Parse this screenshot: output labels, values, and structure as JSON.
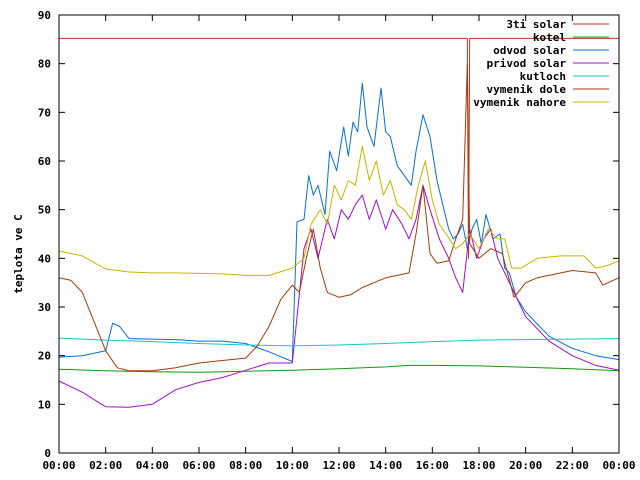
{
  "chart_data": {
    "type": "line",
    "title": "",
    "xlabel": "",
    "ylabel": "teplota ve C",
    "xlim": [
      0,
      24
    ],
    "ylim": [
      0,
      90
    ],
    "x_ticks": [
      0,
      2,
      4,
      6,
      8,
      10,
      12,
      14,
      16,
      18,
      20,
      22,
      24
    ],
    "x_tick_labels": [
      "00:00",
      "02:00",
      "04:00",
      "06:00",
      "08:00",
      "10:00",
      "12:00",
      "14:00",
      "16:00",
      "18:00",
      "20:00",
      "22:00",
      "00:00"
    ],
    "y_ticks": [
      0,
      10,
      20,
      30,
      40,
      50,
      60,
      70,
      80,
      90
    ],
    "grid": false,
    "legend_position": "top-right",
    "series": [
      {
        "name": "3ti solar",
        "color": "#c8321e",
        "points": [
          [
            0,
            85.2
          ],
          [
            17.45,
            85.2
          ],
          [
            17.5,
            85.2
          ],
          [
            17.55,
            40
          ],
          [
            17.6,
            85.2
          ],
          [
            24,
            85.2
          ]
        ]
      },
      {
        "name": "kotel",
        "color": "#119911",
        "points": [
          [
            0,
            17.2
          ],
          [
            2,
            16.9
          ],
          [
            4,
            16.7
          ],
          [
            6,
            16.6
          ],
          [
            8,
            16.8
          ],
          [
            10,
            17.0
          ],
          [
            12,
            17.3
          ],
          [
            14,
            17.7
          ],
          [
            15,
            18.0
          ],
          [
            16,
            18.0
          ],
          [
            18,
            17.9
          ],
          [
            20,
            17.6
          ],
          [
            22,
            17.3
          ],
          [
            24,
            16.9
          ]
        ]
      },
      {
        "name": "odvod solar",
        "color": "#0a6ed0",
        "points": [
          [
            0,
            19.7
          ],
          [
            1,
            20.0
          ],
          [
            2,
            21.0
          ],
          [
            2.3,
            26.7
          ],
          [
            2.6,
            26.0
          ],
          [
            3,
            23.5
          ],
          [
            4,
            23.4
          ],
          [
            5,
            23.3
          ],
          [
            6,
            23.0
          ],
          [
            7,
            23.0
          ],
          [
            8,
            22.5
          ],
          [
            9,
            20.8
          ],
          [
            10,
            18.8
          ],
          [
            10.2,
            47.5
          ],
          [
            10.5,
            48.0
          ],
          [
            10.7,
            57.0
          ],
          [
            10.9,
            53.0
          ],
          [
            11.1,
            55.0
          ],
          [
            11.4,
            49.0
          ],
          [
            11.6,
            62.0
          ],
          [
            11.9,
            58.0
          ],
          [
            12.2,
            67.0
          ],
          [
            12.4,
            61.0
          ],
          [
            12.6,
            68.0
          ],
          [
            12.8,
            66.0
          ],
          [
            13.0,
            76.0
          ],
          [
            13.2,
            67.0
          ],
          [
            13.5,
            63.0
          ],
          [
            13.8,
            75.0
          ],
          [
            14.0,
            66.0
          ],
          [
            14.2,
            65.0
          ],
          [
            14.5,
            59.0
          ],
          [
            14.8,
            57.0
          ],
          [
            15.1,
            55.0
          ],
          [
            15.3,
            62.0
          ],
          [
            15.6,
            69.5
          ],
          [
            15.9,
            65.0
          ],
          [
            16.2,
            56.0
          ],
          [
            16.5,
            50.0
          ],
          [
            16.7,
            46.0
          ],
          [
            16.9,
            44.0
          ],
          [
            17.1,
            45.0
          ],
          [
            17.3,
            47.0
          ],
          [
            17.5,
            42.0
          ],
          [
            17.7,
            46.0
          ],
          [
            17.9,
            48.0
          ],
          [
            18.1,
            43.0
          ],
          [
            18.3,
            49.0
          ],
          [
            18.6,
            44.0
          ],
          [
            18.9,
            45.0
          ],
          [
            19.1,
            38.0
          ],
          [
            19.3,
            37.0
          ],
          [
            19.6,
            32.0
          ],
          [
            20.0,
            29.0
          ],
          [
            21.0,
            24.0
          ],
          [
            22.0,
            21.5
          ],
          [
            23.0,
            20.0
          ],
          [
            24,
            19.2
          ]
        ]
      },
      {
        "name": "privod solar",
        "color": "#a010c8",
        "points": [
          [
            0,
            14.8
          ],
          [
            1,
            12.5
          ],
          [
            2,
            9.5
          ],
          [
            3,
            9.4
          ],
          [
            4,
            10.0
          ],
          [
            5,
            13.0
          ],
          [
            6,
            14.5
          ],
          [
            7,
            15.5
          ],
          [
            8,
            17.0
          ],
          [
            9,
            18.5
          ],
          [
            10,
            18.5
          ],
          [
            10.5,
            42.0
          ],
          [
            10.8,
            46.0
          ],
          [
            11.1,
            40.0
          ],
          [
            11.5,
            48.0
          ],
          [
            11.8,
            44.0
          ],
          [
            12.1,
            50.0
          ],
          [
            12.4,
            48.0
          ],
          [
            12.7,
            51.0
          ],
          [
            13.0,
            53.0
          ],
          [
            13.3,
            48.0
          ],
          [
            13.6,
            52.0
          ],
          [
            14.0,
            46.0
          ],
          [
            14.3,
            50.0
          ],
          [
            14.7,
            47.0
          ],
          [
            15.0,
            44.0
          ],
          [
            15.3,
            48.0
          ],
          [
            15.6,
            55.0
          ],
          [
            15.9,
            50.0
          ],
          [
            16.3,
            44.0
          ],
          [
            16.7,
            40.0
          ],
          [
            17.0,
            36.0
          ],
          [
            17.3,
            33.0
          ],
          [
            17.6,
            46.0
          ],
          [
            17.9,
            40.0
          ],
          [
            18.2,
            44.0
          ],
          [
            18.5,
            46.0
          ],
          [
            18.8,
            40.0
          ],
          [
            19.1,
            37.0
          ],
          [
            19.4,
            34.0
          ],
          [
            19.7,
            31.0
          ],
          [
            20.0,
            28.0
          ],
          [
            21.0,
            23.0
          ],
          [
            22.0,
            20.0
          ],
          [
            23.0,
            18.0
          ],
          [
            24,
            17.0
          ]
        ]
      },
      {
        "name": "kutloch",
        "color": "#10c8c8",
        "points": [
          [
            0,
            23.6
          ],
          [
            2,
            23.2
          ],
          [
            4,
            22.9
          ],
          [
            6,
            22.5
          ],
          [
            8,
            22.2
          ],
          [
            10,
            22.0
          ],
          [
            12,
            22.2
          ],
          [
            14,
            22.5
          ],
          [
            16,
            22.9
          ],
          [
            18,
            23.2
          ],
          [
            20,
            23.3
          ],
          [
            22,
            23.4
          ],
          [
            24,
            23.5
          ]
        ]
      },
      {
        "name": "vymenik dole",
        "color": "#a03c0a",
        "points": [
          [
            0,
            36.0
          ],
          [
            0.5,
            35.5
          ],
          [
            1,
            33.0
          ],
          [
            1.5,
            27.0
          ],
          [
            2,
            21.0
          ],
          [
            2.5,
            17.5
          ],
          [
            3,
            16.9
          ],
          [
            4,
            16.9
          ],
          [
            5,
            17.5
          ],
          [
            6,
            18.5
          ],
          [
            7,
            19.0
          ],
          [
            8,
            19.5
          ],
          [
            8.5,
            22.0
          ],
          [
            9,
            26.0
          ],
          [
            9.5,
            31.5
          ],
          [
            10,
            34.5
          ],
          [
            10.3,
            33.0
          ],
          [
            10.6,
            40.0
          ],
          [
            10.9,
            46.0
          ],
          [
            11.2,
            38.0
          ],
          [
            11.5,
            33.0
          ],
          [
            12.0,
            32.0
          ],
          [
            12.5,
            32.5
          ],
          [
            13.0,
            34.0
          ],
          [
            13.5,
            35.0
          ],
          [
            14.0,
            36.0
          ],
          [
            14.5,
            36.5
          ],
          [
            15.0,
            37.0
          ],
          [
            15.3,
            45.0
          ],
          [
            15.6,
            55.0
          ],
          [
            15.9,
            41.0
          ],
          [
            16.2,
            39.0
          ],
          [
            16.7,
            39.5
          ],
          [
            17.0,
            44.0
          ],
          [
            17.3,
            48.0
          ],
          [
            17.5,
            80.0
          ],
          [
            17.6,
            43.0
          ],
          [
            18.0,
            40.0
          ],
          [
            18.5,
            42.0
          ],
          [
            19.0,
            41.0
          ],
          [
            19.5,
            32.0
          ],
          [
            20.0,
            35.0
          ],
          [
            20.5,
            36.0
          ],
          [
            21.0,
            36.5
          ],
          [
            22.0,
            37.5
          ],
          [
            23.0,
            37.0
          ],
          [
            23.3,
            34.5
          ],
          [
            24,
            36.0
          ]
        ]
      },
      {
        "name": "vymenik nahore",
        "color": "#c8b400",
        "points": [
          [
            0,
            41.5
          ],
          [
            1,
            40.5
          ],
          [
            2,
            37.8
          ],
          [
            3,
            37.2
          ],
          [
            4,
            37.0
          ],
          [
            5,
            37.0
          ],
          [
            6,
            36.9
          ],
          [
            7,
            36.8
          ],
          [
            8,
            36.5
          ],
          [
            9,
            36.5
          ],
          [
            10,
            38.0
          ],
          [
            10.5,
            40.0
          ],
          [
            10.8,
            47.0
          ],
          [
            11.2,
            50.0
          ],
          [
            11.5,
            47.0
          ],
          [
            11.8,
            55.0
          ],
          [
            12.1,
            52.0
          ],
          [
            12.4,
            56.0
          ],
          [
            12.7,
            55.0
          ],
          [
            13.0,
            63.0
          ],
          [
            13.3,
            56.0
          ],
          [
            13.6,
            60.0
          ],
          [
            13.9,
            53.0
          ],
          [
            14.2,
            56.0
          ],
          [
            14.5,
            51.0
          ],
          [
            14.8,
            50.0
          ],
          [
            15.1,
            48.0
          ],
          [
            15.4,
            55.0
          ],
          [
            15.7,
            60.0
          ],
          [
            16.0,
            52.0
          ],
          [
            16.3,
            47.0
          ],
          [
            16.6,
            45.0
          ],
          [
            17.0,
            42.0
          ],
          [
            17.3,
            43.0
          ],
          [
            17.6,
            45.0
          ],
          [
            18.0,
            42.0
          ],
          [
            18.4,
            46.0
          ],
          [
            18.8,
            44.0
          ],
          [
            19.1,
            44.0
          ],
          [
            19.4,
            38.0
          ],
          [
            19.8,
            38.0
          ],
          [
            20.5,
            40.0
          ],
          [
            21.5,
            40.5
          ],
          [
            22.5,
            40.5
          ],
          [
            23.0,
            38.0
          ],
          [
            23.5,
            38.5
          ],
          [
            24,
            39.5
          ]
        ]
      }
    ]
  }
}
